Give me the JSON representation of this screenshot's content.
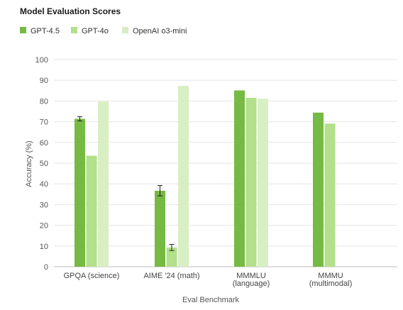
{
  "chart_data": {
    "type": "bar",
    "title": "Model Evaluation Scores",
    "xlabel": "Eval Benchmark",
    "ylabel": "Accuracy (%)",
    "ylim": [
      0,
      100
    ],
    "yticks": [
      0,
      10,
      20,
      30,
      40,
      50,
      60,
      70,
      80,
      90,
      100
    ],
    "grid": true,
    "legend_position": "top-left",
    "categories": [
      [
        "GPQA (science)"
      ],
      [
        "AIME '24 (math)"
      ],
      [
        "MMMLU",
        "(language)"
      ],
      [
        "MMMU",
        "(multimodal)"
      ]
    ],
    "series": [
      {
        "name": "GPT-4.5",
        "color": "#76b943",
        "values": [
          71.4,
          36.7,
          85.1,
          74.4
        ],
        "errors": [
          1,
          2.5,
          null,
          null
        ]
      },
      {
        "name": "GPT-4o",
        "color": "#b3e08a",
        "values": [
          53.6,
          9.3,
          81.5,
          69.1
        ],
        "errors": [
          null,
          1.5,
          null,
          null
        ]
      },
      {
        "name": "OpenAI o3-mini",
        "color": "#d8eec3",
        "values": [
          79.7,
          87.3,
          81.1,
          null
        ],
        "errors": [
          null,
          null,
          null,
          null
        ]
      }
    ]
  }
}
